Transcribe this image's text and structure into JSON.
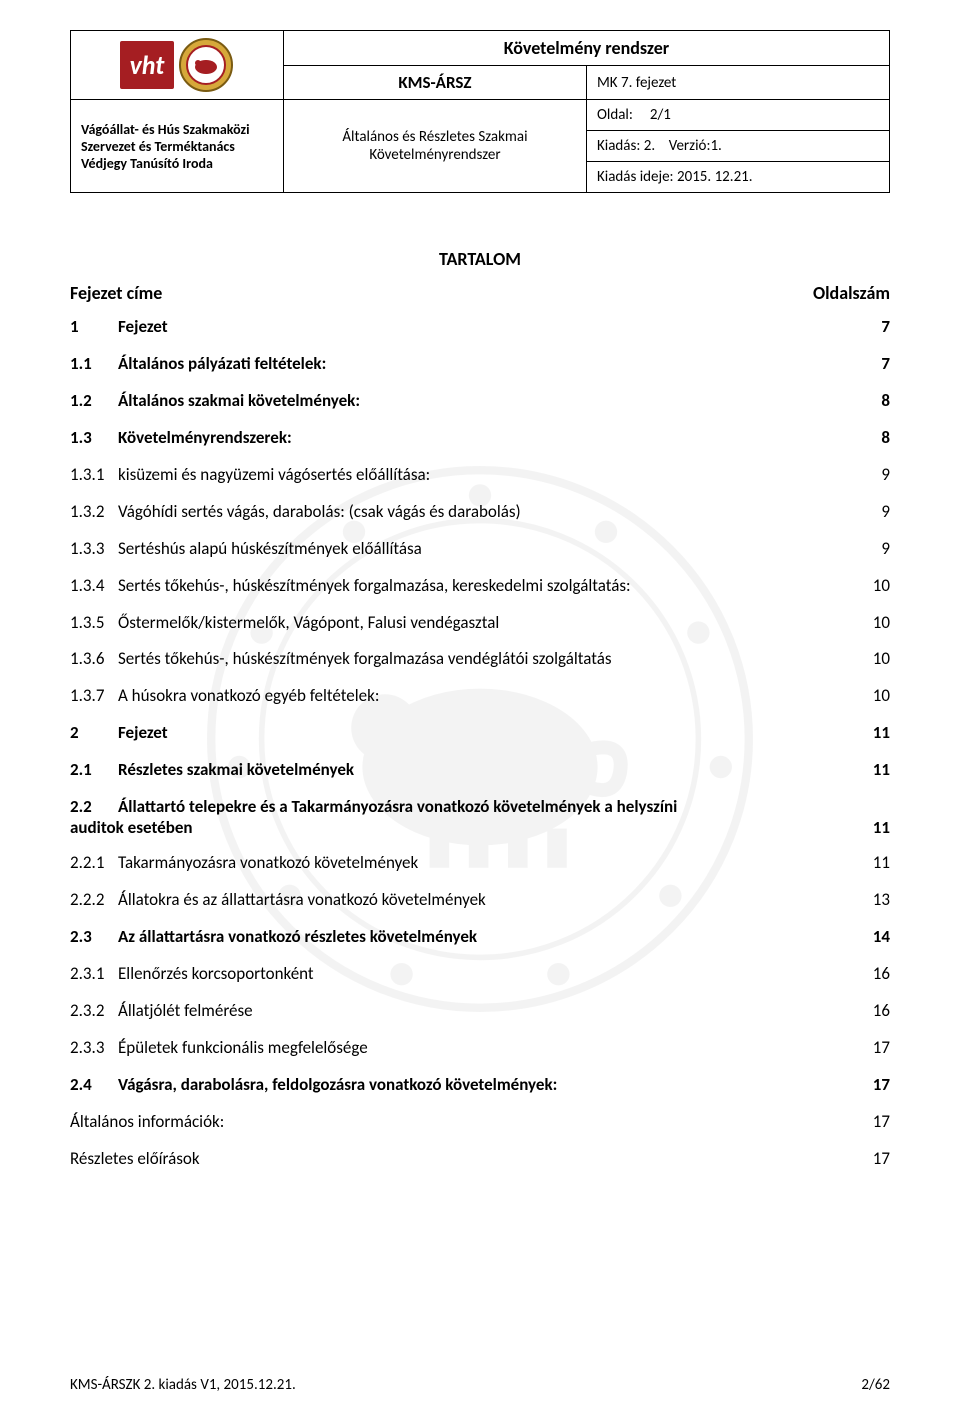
{
  "header": {
    "org_line1": "Vágóállat- és Hús Szakmaközi",
    "org_line2": "Szervezet és Terméktanács",
    "org_line3": "Védjegy Tanúsító Iroda",
    "vht_text": "vht",
    "doc_title": "Követelmény rendszer",
    "code": "KMS-ÁRSZ",
    "subtitle_line1": "Általános és Részletes Szakmai",
    "subtitle_line2": "Követelményrendszer",
    "chapter": "MK 7. fejezet",
    "page_label": "Oldal:",
    "page_value": "2/1",
    "issue_label": "Kiadás: 2.",
    "version_label": "Verzió:1.",
    "issue_date_label": "Kiadás ideje:",
    "issue_date_value": "2015. 12.21."
  },
  "toc": {
    "heading": "TARTALOM",
    "left_head": "Fejezet címe",
    "right_head": "Oldalszám",
    "rows": [
      {
        "num": "1",
        "label": "Fejezet",
        "page": "7",
        "bold": true
      },
      {
        "num": "1.1",
        "label": "Általános pályázati feltételek:",
        "page": "7",
        "bold": true
      },
      {
        "num": "1.2",
        "label": "Általános szakmai követelmények:",
        "page": "8",
        "bold": true
      },
      {
        "num": "1.3",
        "label": "Követelményrendszerek:",
        "page": "8",
        "bold": true
      },
      {
        "num": "1.3.1",
        "label": "kisüzemi és nagyüzemi vágósertés előállítása:",
        "page": "9",
        "bold": false
      },
      {
        "num": "1.3.2",
        "label": "Vágóhídi sertés vágás, darabolás: (csak vágás és darabolás)",
        "page": "9",
        "bold": false
      },
      {
        "num": "1.3.3",
        "label": "Sertéshús alapú húskészítmények előállítása",
        "page": "9",
        "bold": false
      },
      {
        "num": "1.3.4",
        "label": "Sertés tőkehús-, húskészítmények forgalmazása, kereskedelmi szolgáltatás:",
        "page": "10",
        "bold": false
      },
      {
        "num": "1.3.5",
        "label": "Őstermelők/kistermelők, Vágópont, Falusi vendégasztal",
        "page": "10",
        "bold": false
      },
      {
        "num": "1.3.6",
        "label": "Sertés tőkehús-, húskészítmények forgalmazása vendéglátói szolgáltatás",
        "page": "10",
        "bold": false
      },
      {
        "num": "1.3.7",
        "label": "A húsokra vonatkozó egyéb feltételek:",
        "page": "10",
        "bold": false
      },
      {
        "num": "2",
        "label": "Fejezet",
        "page": "11",
        "bold": true
      },
      {
        "num": "2.1",
        "label": "Részletes szakmai követelmények",
        "page": "11",
        "bold": true
      }
    ],
    "row_2_2": {
      "num": "2.2",
      "line1": "Állattartó telepekre és a Takarmányozásra vonatkozó követelmények a helyszíni",
      "line2": "auditok esetében",
      "page": "11"
    },
    "rows2": [
      {
        "num": "2.2.1",
        "label": "Takarmányozásra vonatkozó követelmények",
        "page": "11",
        "bold": false
      },
      {
        "num": "2.2.2",
        "label": "Állatokra és az állattartásra vonatkozó követelmények",
        "page": "13",
        "bold": false
      },
      {
        "num": "2.3",
        "label": "Az állattartásra vonatkozó részletes követelmények",
        "page": "14",
        "bold": true
      },
      {
        "num": "2.3.1",
        "label": "Ellenőrzés korcsoportonként",
        "page": "16",
        "bold": false
      },
      {
        "num": "2.3.2",
        "label": "Állatjólét felmérése",
        "page": "16",
        "bold": false
      },
      {
        "num": "2.3.3",
        "label": "Épületek funkcionális megfelelősége",
        "page": "17",
        "bold": false
      },
      {
        "num": "2.4",
        "label": "Vágásra, darabolásra, feldolgozásra vonatkozó követelmények:",
        "page": "17",
        "bold": true
      },
      {
        "num": "",
        "label": "Általános információk:",
        "page": "17",
        "bold": false
      },
      {
        "num": "",
        "label": "Részletes előírások",
        "page": "17",
        "bold": false
      }
    ]
  },
  "footer": {
    "left": "KMS-ÁRSZK 2. kiadás V1, 2015.12.21.",
    "right": "2/62"
  },
  "colors": {
    "brand_red": "#a51e22",
    "watermark_gray": "#666666"
  }
}
